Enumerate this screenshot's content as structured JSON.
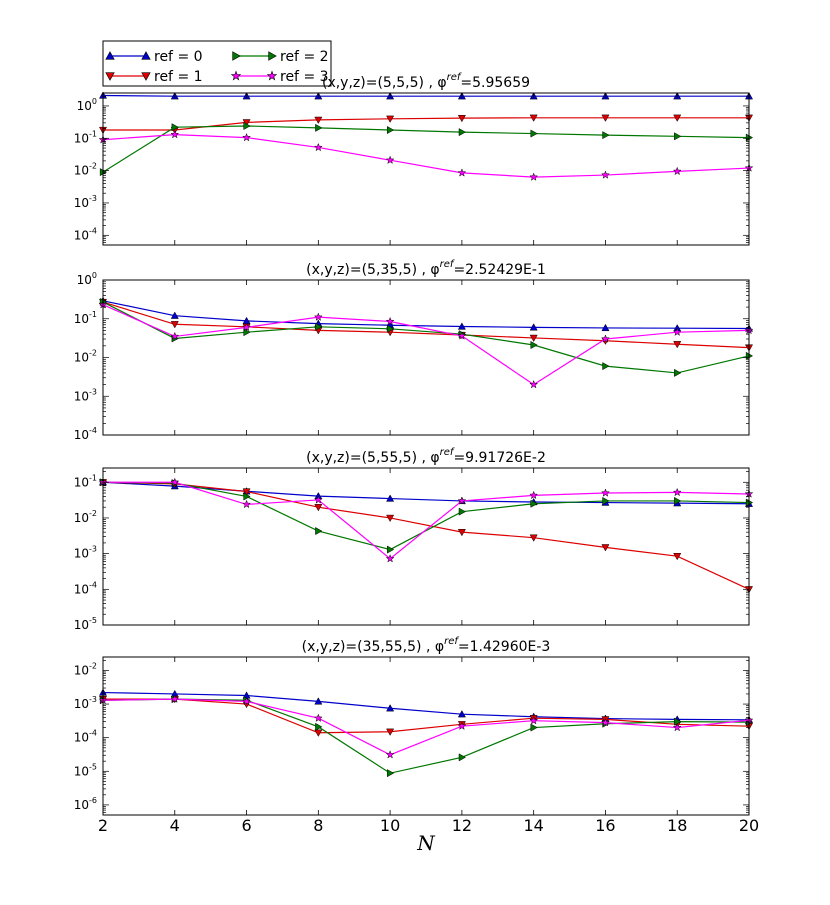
{
  "chart_data": {
    "type": "line",
    "scale": "log-y",
    "xlabel": "N",
    "x": [
      2,
      4,
      6,
      8,
      10,
      12,
      14,
      16,
      18,
      20
    ],
    "xlim": [
      2,
      20
    ],
    "xticks": [
      "2",
      "4",
      "6",
      "8",
      "10",
      "12",
      "14",
      "16",
      "18",
      "20"
    ],
    "legend": {
      "placement": "top-left, outside",
      "entries": [
        {
          "label": "ref = 0",
          "color": "#0000cc",
          "marker": "triangle-up"
        },
        {
          "label": "ref = 1",
          "color": "#dd0000",
          "marker": "triangle-down"
        },
        {
          "label": "ref = 2",
          "color": "#007700",
          "marker": "triangle-right"
        },
        {
          "label": "ref = 3",
          "color": "#ff00ff",
          "marker": "star"
        }
      ]
    },
    "panels": [
      {
        "title": "(x,y,z)=(5,5,5) , φ",
        "title_sup": "ref",
        "title_value": "=5.95659",
        "ylim_exp": [
          -4.3,
          0.4
        ],
        "ytick_exps": [
          -4,
          -3,
          -2,
          -1,
          0
        ],
        "series": [
          {
            "name": "ref = 0",
            "values": [
              2.1,
              2.0,
              2.0,
              2.0,
              2.0,
              2.0,
              2.0,
              2.0,
              2.0,
              2.0
            ]
          },
          {
            "name": "ref = 1",
            "values": [
              0.18,
              0.18,
              0.31,
              0.37,
              0.4,
              0.42,
              0.43,
              0.43,
              0.43,
              0.43
            ]
          },
          {
            "name": "ref = 2",
            "values": [
              0.009,
              0.22,
              0.24,
              0.21,
              0.18,
              0.155,
              0.14,
              0.125,
              0.115,
              0.105
            ]
          },
          {
            "name": "ref = 3",
            "values": [
              0.09,
              0.13,
              0.105,
              0.052,
              0.021,
              0.0085,
              0.0063,
              0.0073,
              0.0095,
              0.012
            ]
          }
        ]
      },
      {
        "title": "(x,y,z)=(5,35,5) , φ",
        "title_sup": "ref",
        "title_value": "=2.52429E-1",
        "ylim_exp": [
          -4,
          0
        ],
        "ytick_exps": [
          -4,
          -3,
          -2,
          -1,
          0
        ],
        "series": [
          {
            "name": "ref = 0",
            "values": [
              0.29,
              0.12,
              0.088,
              0.075,
              0.068,
              0.063,
              0.06,
              0.058,
              0.057,
              0.056
            ]
          },
          {
            "name": "ref = 1",
            "values": [
              0.27,
              0.072,
              0.062,
              0.05,
              0.045,
              0.038,
              0.032,
              0.027,
              0.022,
              0.018
            ]
          },
          {
            "name": "ref = 2",
            "values": [
              0.27,
              0.031,
              0.045,
              0.062,
              0.055,
              0.04,
              0.021,
              0.006,
              0.004,
              0.011
            ]
          },
          {
            "name": "ref = 3",
            "values": [
              0.23,
              0.035,
              0.06,
              0.11,
              0.085,
              0.036,
              0.002,
              0.03,
              0.045,
              0.05
            ]
          }
        ]
      },
      {
        "title": "(x,y,z)=(5,55,5) , φ",
        "title_sup": "ref",
        "title_value": "=9.91726E-2",
        "ylim_exp": [
          -5,
          -0.6
        ],
        "ytick_exps": [
          -5,
          -4,
          -3,
          -2,
          -1
        ],
        "series": [
          {
            "name": "ref = 0",
            "values": [
              0.1,
              0.078,
              0.056,
              0.041,
              0.035,
              0.03,
              0.028,
              0.027,
              0.026,
              0.025
            ]
          },
          {
            "name": "ref = 1",
            "values": [
              0.1,
              0.09,
              0.055,
              0.02,
              0.01,
              0.004,
              0.0028,
              0.0015,
              0.00085,
              0.0001
            ]
          },
          {
            "name": "ref = 2",
            "values": [
              0.1,
              0.095,
              0.04,
              0.0043,
              0.0013,
              0.015,
              0.025,
              0.03,
              0.03,
              0.027
            ]
          },
          {
            "name": "ref = 3",
            "values": [
              0.1,
              0.1,
              0.024,
              0.032,
              0.00072,
              0.03,
              0.043,
              0.05,
              0.052,
              0.047
            ]
          }
        ]
      },
      {
        "title": "(x,y,z)=(35,55,5) , φ",
        "title_sup": "ref",
        "title_value": "=1.42960E-3",
        "ylim_exp": [
          -6.3,
          -1.6
        ],
        "ytick_exps": [
          -6,
          -5,
          -4,
          -3,
          -2
        ],
        "series": [
          {
            "name": "ref = 0",
            "values": [
              0.0022,
              0.002,
              0.0018,
              0.0012,
              0.00075,
              0.0005,
              0.00042,
              0.00037,
              0.00035,
              0.00034
            ]
          },
          {
            "name": "ref = 1",
            "values": [
              0.0014,
              0.0014,
              0.001,
              0.00014,
              0.00015,
              0.00025,
              0.00038,
              0.00035,
              0.00025,
              0.00022
            ]
          },
          {
            "name": "ref = 2",
            "values": [
              0.0013,
              0.0014,
              0.0013,
              0.00021,
              8.8e-06,
              2.6e-05,
              0.0002,
              0.00026,
              0.0003,
              0.00029
            ]
          },
          {
            "name": "ref = 3",
            "values": [
              0.0013,
              0.0014,
              0.0012,
              0.00038,
              3.1e-05,
              0.00022,
              0.00032,
              0.00028,
              0.0002,
              0.00033
            ]
          }
        ]
      }
    ]
  }
}
